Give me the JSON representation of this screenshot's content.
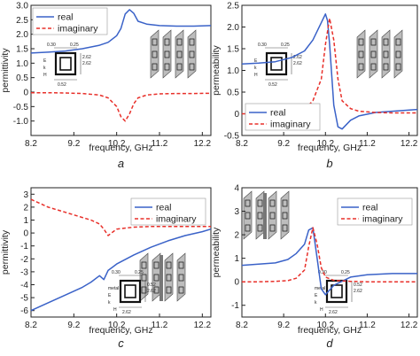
{
  "colors": {
    "real": "#3a62c8",
    "imaginary": "#e8302a",
    "axis": "#222222"
  },
  "chart_data": [
    {
      "panel_label": "a",
      "type": "line",
      "xlabel": "frequency, GHz",
      "ylabel": "permittivity",
      "xlim": [
        8.2,
        12.4
      ],
      "ylim": [
        -1.5,
        3.0
      ],
      "xticks": [
        "8.2",
        "9.2",
        "10.2",
        "11.2",
        "12.2"
      ],
      "yticks": [
        "-1.0",
        "-0.5",
        "0",
        "0.5",
        "1.0",
        "1.5",
        "2.0",
        "2.5",
        "3.0"
      ],
      "legend": {
        "position": "top-left",
        "entries": [
          "real",
          "imaginary"
        ]
      },
      "inset_labels": [
        "0.30",
        "0.25",
        "2.62",
        "2.62",
        "0.52",
        "E",
        "k",
        "H"
      ],
      "series": [
        {
          "name": "real",
          "style": "solid",
          "x": [
            8.2,
            8.6,
            9.0,
            9.4,
            9.8,
            10.0,
            10.2,
            10.3,
            10.4,
            10.5,
            10.6,
            10.7,
            10.9,
            11.2,
            11.6,
            12.0,
            12.4
          ],
          "y": [
            1.35,
            1.38,
            1.42,
            1.5,
            1.62,
            1.72,
            1.95,
            2.2,
            2.7,
            2.85,
            2.72,
            2.45,
            2.35,
            2.3,
            2.28,
            2.28,
            2.3
          ]
        },
        {
          "name": "imaginary",
          "style": "dashed",
          "x": [
            8.2,
            8.6,
            9.0,
            9.4,
            9.8,
            10.0,
            10.2,
            10.3,
            10.4,
            10.5,
            10.6,
            10.7,
            10.9,
            11.2,
            11.6,
            12.0,
            12.4
          ],
          "y": [
            -0.02,
            -0.02,
            -0.03,
            -0.05,
            -0.1,
            -0.2,
            -0.5,
            -0.85,
            -1.0,
            -0.75,
            -0.4,
            -0.2,
            -0.1,
            -0.06,
            -0.05,
            -0.05,
            -0.04
          ]
        }
      ]
    },
    {
      "panel_label": "b",
      "type": "line",
      "xlabel": "frequency, GHz",
      "ylabel": "permeability",
      "xlim": [
        8.2,
        12.4
      ],
      "ylim": [
        -0.5,
        2.5
      ],
      "xticks": [
        "8.2",
        "9.2",
        "10.2",
        "11.2",
        "12.2"
      ],
      "yticks": [
        "-0.5",
        "0",
        "0.5",
        "1.0",
        "1.5",
        "2.0",
        "2.5"
      ],
      "legend": {
        "position": "bottom-left",
        "entries": [
          "real",
          "imaginary"
        ]
      },
      "inset_labels": [
        "0.30",
        "0.25",
        "2.62",
        "2.62",
        "0.52",
        "E",
        "k",
        "H"
      ],
      "series": [
        {
          "name": "real",
          "style": "solid",
          "x": [
            8.2,
            8.6,
            9.0,
            9.4,
            9.7,
            9.9,
            10.1,
            10.2,
            10.25,
            10.3,
            10.4,
            10.5,
            10.6,
            10.8,
            11.0,
            11.4,
            11.8,
            12.4
          ],
          "y": [
            1.15,
            1.17,
            1.2,
            1.3,
            1.45,
            1.7,
            2.1,
            2.3,
            2.15,
            1.6,
            0.2,
            -0.3,
            -0.35,
            -0.15,
            -0.05,
            0.03,
            0.06,
            0.1
          ]
        },
        {
          "name": "imaginary",
          "style": "dashed",
          "x": [
            8.2,
            8.6,
            9.0,
            9.4,
            9.7,
            9.9,
            10.1,
            10.2,
            10.3,
            10.4,
            10.5,
            10.6,
            10.8,
            11.0,
            11.4,
            11.8,
            12.4
          ],
          "y": [
            0.0,
            0.0,
            0.02,
            0.05,
            0.1,
            0.3,
            0.8,
            1.6,
            2.2,
            1.7,
            0.8,
            0.3,
            0.12,
            0.06,
            0.03,
            0.02,
            0.02
          ]
        }
      ]
    },
    {
      "panel_label": "c",
      "type": "line",
      "xlabel": "frequency, GHz",
      "ylabel": "permittivity",
      "xlim": [
        8.2,
        12.4
      ],
      "ylim": [
        -6.5,
        3.5
      ],
      "xticks": [
        "8.2",
        "9.2",
        "10.2",
        "11.2",
        "12.2"
      ],
      "yticks": [
        "-6",
        "-5",
        "-4",
        "-3",
        "-2",
        "-1",
        "0",
        "1",
        "2",
        "3"
      ],
      "legend": {
        "position": "top-right",
        "entries": [
          "real",
          "imaginary"
        ]
      },
      "inset_labels": [
        "0.30",
        "0.25",
        "2.62",
        "0.52",
        "2.62",
        "metal",
        "E",
        "k",
        "H"
      ],
      "series": [
        {
          "name": "real",
          "style": "solid",
          "x": [
            8.2,
            8.6,
            9.0,
            9.4,
            9.6,
            9.8,
            9.9,
            10.0,
            10.2,
            10.6,
            11.0,
            11.4,
            11.8,
            12.2,
            12.4
          ],
          "y": [
            -6.0,
            -5.4,
            -4.8,
            -4.2,
            -3.8,
            -3.3,
            -3.6,
            -2.9,
            -2.4,
            -1.7,
            -1.1,
            -0.6,
            -0.2,
            0.1,
            0.3
          ]
        },
        {
          "name": "imaginary",
          "style": "dashed",
          "x": [
            8.2,
            8.6,
            9.0,
            9.4,
            9.6,
            9.8,
            9.9,
            10.0,
            10.2,
            10.6,
            11.0,
            11.4,
            11.8,
            12.2,
            12.4
          ],
          "y": [
            2.6,
            2.0,
            1.6,
            1.2,
            1.0,
            0.7,
            0.3,
            -0.2,
            0.3,
            0.45,
            0.5,
            0.5,
            0.5,
            0.5,
            0.5
          ]
        }
      ]
    },
    {
      "panel_label": "d",
      "type": "line",
      "xlabel": "frequency, GHz",
      "ylabel": "permeability",
      "xlim": [
        8.2,
        12.4
      ],
      "ylim": [
        -1.5,
        4.0
      ],
      "xticks": [
        "8.2",
        "9.2",
        "10.2",
        "11.2",
        "12.2"
      ],
      "yticks": [
        "-1",
        "0",
        "1",
        "2",
        "3",
        "4"
      ],
      "legend": {
        "position": "top-right",
        "entries": [
          "real",
          "imaginary"
        ]
      },
      "inset_labels": [
        "0.30",
        "0.25",
        "2.62",
        "0.52",
        "2.62",
        "metal",
        "E",
        "k",
        "H"
      ],
      "series": [
        {
          "name": "real",
          "style": "solid",
          "x": [
            8.2,
            8.6,
            9.0,
            9.3,
            9.5,
            9.7,
            9.8,
            9.9,
            10.0,
            10.1,
            10.2,
            10.4,
            10.8,
            11.2,
            11.8,
            12.4
          ],
          "y": [
            0.7,
            0.75,
            0.8,
            0.95,
            1.2,
            1.6,
            2.2,
            2.3,
            1.0,
            -0.3,
            -0.55,
            -0.15,
            0.2,
            0.3,
            0.35,
            0.35
          ]
        },
        {
          "name": "imaginary",
          "style": "dashed",
          "x": [
            8.2,
            8.6,
            9.0,
            9.3,
            9.5,
            9.7,
            9.8,
            9.9,
            10.0,
            10.1,
            10.2,
            10.4,
            10.8,
            11.2,
            11.8,
            12.4
          ],
          "y": [
            0.0,
            0.0,
            0.02,
            0.05,
            0.15,
            0.5,
            1.5,
            2.3,
            1.6,
            0.6,
            0.2,
            0.06,
            0.02,
            0.0,
            0.0,
            0.0
          ]
        }
      ]
    }
  ]
}
